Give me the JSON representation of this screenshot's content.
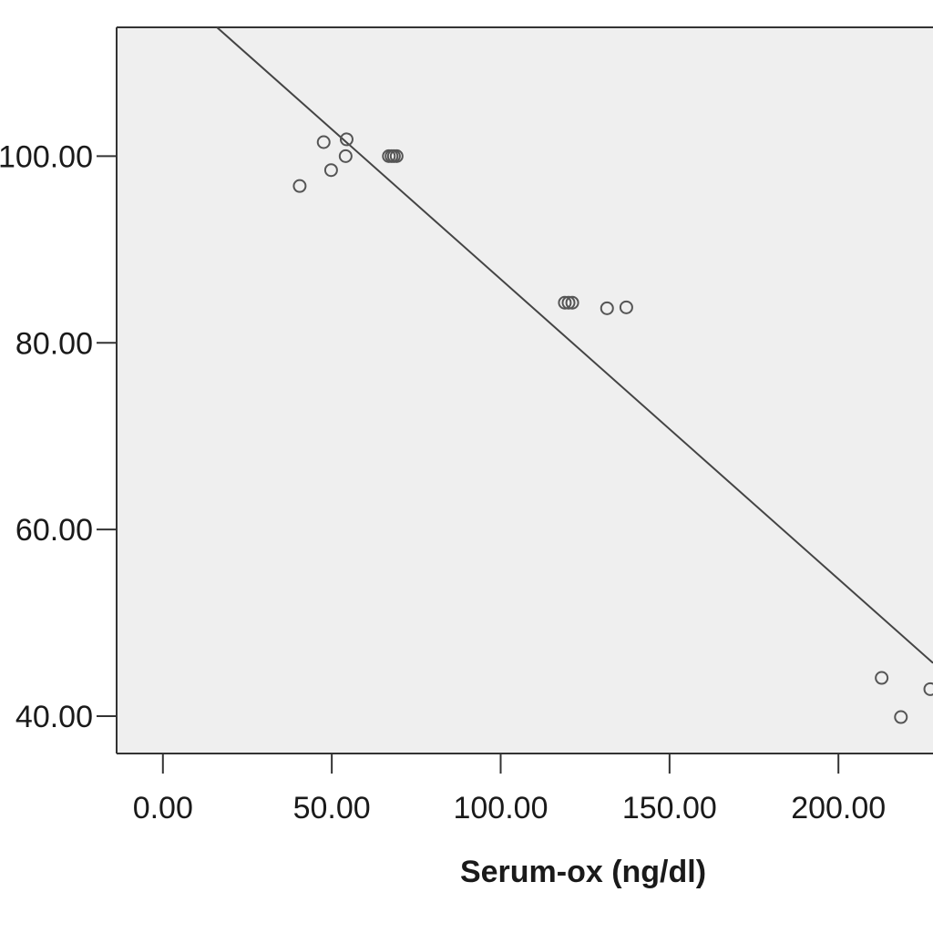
{
  "chart_data": {
    "type": "scatter",
    "title": "",
    "xlabel": "Serum-ox (ng/dl)",
    "ylabel": "",
    "xlim": [
      -13.7,
      228
    ],
    "ylim": [
      36,
      113.8
    ],
    "x_ticks": [
      0,
      50,
      100,
      150,
      200
    ],
    "x_tick_labels": [
      "0.00",
      "50.00",
      "100.00",
      "150.00",
      "200.00"
    ],
    "y_ticks": [
      40,
      60,
      80,
      100
    ],
    "y_tick_labels": [
      "40.00",
      "60.00",
      "80.00",
      "100.00"
    ],
    "grid": false,
    "legend": "none",
    "background_color": "#efefef",
    "marker": "open-circle",
    "points": [
      {
        "x": 40.5,
        "y": 96.8
      },
      {
        "x": 47.6,
        "y": 101.5
      },
      {
        "x": 49.8,
        "y": 98.5
      },
      {
        "x": 54.4,
        "y": 101.8
      },
      {
        "x": 54.1,
        "y": 100.0
      },
      {
        "x": 66.9,
        "y": 100.0
      },
      {
        "x": 67.7,
        "y": 100.0
      },
      {
        "x": 68.4,
        "y": 100.0
      },
      {
        "x": 69.2,
        "y": 100.0
      },
      {
        "x": 119.0,
        "y": 84.3
      },
      {
        "x": 120.1,
        "y": 84.3
      },
      {
        "x": 121.2,
        "y": 84.3
      },
      {
        "x": 131.5,
        "y": 83.7
      },
      {
        "x": 137.2,
        "y": 83.8
      },
      {
        "x": 212.8,
        "y": 44.1
      },
      {
        "x": 218.5,
        "y": 39.9
      },
      {
        "x": 227.2,
        "y": 42.9
      }
    ],
    "fit_line": {
      "type": "linear",
      "points": [
        [
          16.0,
          113.8
        ],
        [
          228.0,
          45.7
        ]
      ]
    }
  }
}
